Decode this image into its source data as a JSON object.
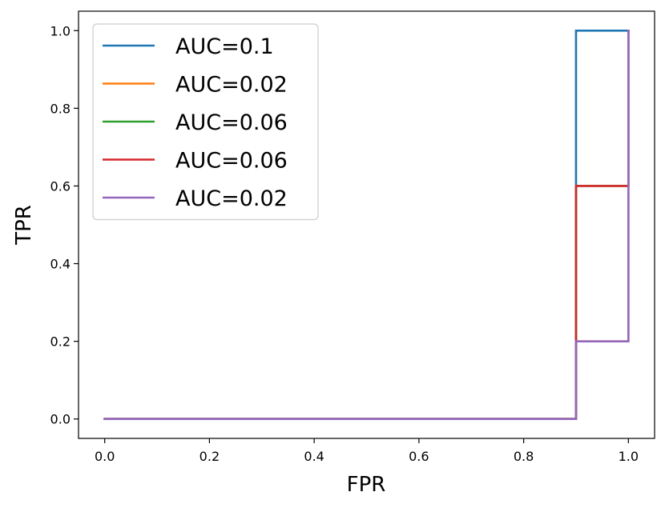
{
  "chart_data": {
    "type": "line",
    "xlabel": "FPR",
    "ylabel": "TPR",
    "xlim": [
      -0.05,
      1.05
    ],
    "ylim": [
      -0.05,
      1.05
    ],
    "xticks": [
      0.0,
      0.2,
      0.4,
      0.6,
      0.8,
      1.0
    ],
    "yticks": [
      0.0,
      0.2,
      0.4,
      0.6,
      0.8,
      1.0
    ],
    "xtick_labels": [
      "0.0",
      "0.2",
      "0.4",
      "0.6",
      "0.8",
      "1.0"
    ],
    "ytick_labels": [
      "0.0",
      "0.2",
      "0.4",
      "0.6",
      "0.8",
      "1.0"
    ],
    "grid": false,
    "legend_position": "top-left",
    "series": [
      {
        "name": "AUC=0.1",
        "color": "#1f77b4",
        "x": [
          0.0,
          0.9,
          0.9,
          1.0,
          1.0
        ],
        "y": [
          0.0,
          0.0,
          1.0,
          1.0,
          1.0
        ]
      },
      {
        "name": "AUC=0.02",
        "color": "#ff7f0e",
        "x": [
          0.0,
          0.9,
          0.9,
          1.0,
          1.0
        ],
        "y": [
          0.0,
          0.0,
          0.2,
          0.2,
          1.0
        ]
      },
      {
        "name": "AUC=0.06",
        "color": "#2ca02c",
        "x": [
          0.0,
          0.9,
          0.9,
          1.0,
          1.0
        ],
        "y": [
          0.0,
          0.0,
          0.6,
          0.6,
          1.0
        ]
      },
      {
        "name": "AUC=0.06",
        "color": "#d62728",
        "x": [
          0.0,
          0.9,
          0.9,
          1.0,
          1.0
        ],
        "y": [
          0.0,
          0.0,
          0.6,
          0.6,
          1.0
        ]
      },
      {
        "name": "AUC=0.02",
        "color": "#9467bd",
        "x": [
          0.0,
          0.9,
          0.9,
          1.0,
          1.0
        ],
        "y": [
          0.0,
          0.0,
          0.2,
          0.2,
          1.0
        ]
      }
    ]
  }
}
